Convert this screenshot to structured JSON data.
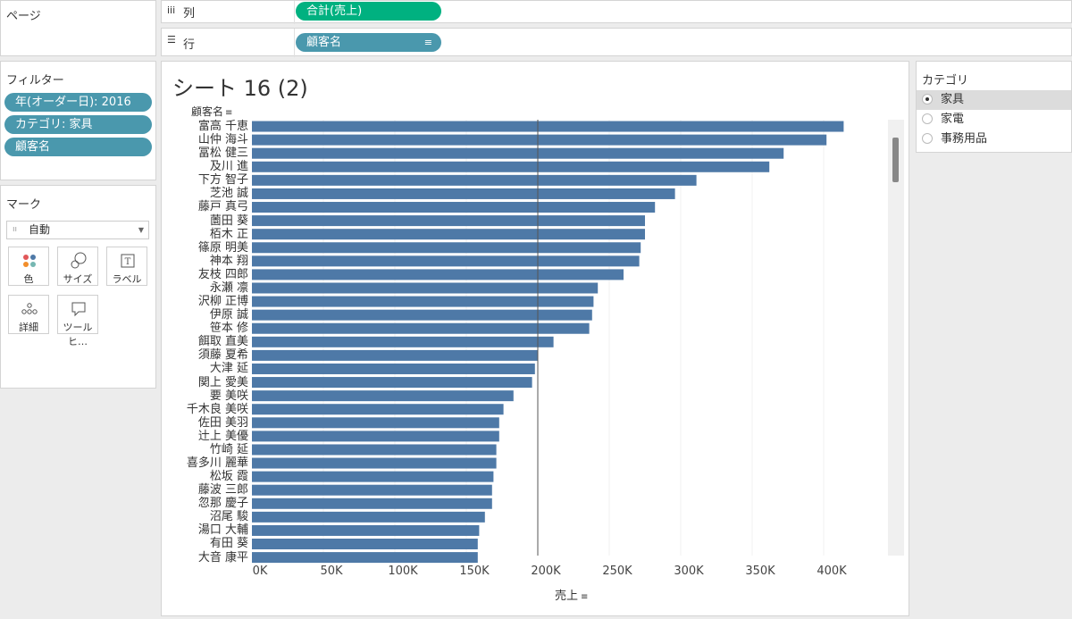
{
  "shelves": {
    "pages_label": "ページ",
    "columns_label": "列",
    "columns_icon": "iii",
    "columns_pill": "合計(売上)",
    "rows_label": "行",
    "rows_icon": "☰",
    "rows_pill": "顧客名"
  },
  "filters": {
    "title": "フィルター",
    "items": [
      "年(オーダー日): 2016",
      "カテゴリ: 家具",
      "顧客名"
    ]
  },
  "marks": {
    "title": "マーク",
    "type_dropdown": "自動",
    "buttons": [
      "色",
      "サイズ",
      "ラベル",
      "詳細",
      "ツールヒ…"
    ]
  },
  "sheet": {
    "title": "シート 16 (2)",
    "row_header": "顧客名",
    "x_axis_title": "売上"
  },
  "legend": {
    "title": "カテゴリ",
    "options": [
      "家具",
      "家電",
      "事務用品"
    ],
    "selected": "家具"
  },
  "colors": {
    "bar": "#4e79a7",
    "pill_green": "#00b180",
    "pill_teal": "#4a98ad",
    "reference_line": "#555555"
  },
  "chart_data": {
    "type": "bar",
    "orientation": "horizontal",
    "categories": [
      "富高 千恵",
      "山仲 海斗",
      "冨松 健三",
      "及川 進",
      "下方 智子",
      "芝池 誠",
      "藤戸 真弓",
      "薗田 葵",
      "栢木 正",
      "篠原 明美",
      "神本 翔",
      "友枝 四郎",
      "永瀬 凛",
      "沢柳 正博",
      "伊原 誠",
      "笹本 修",
      "餌取 直美",
      "須藤 夏希",
      "大津 延",
      "関上 愛美",
      "要 美咲",
      "千木良 美咲",
      "佐田 美羽",
      "辻上 美優",
      "竹崎 延",
      "喜多川 麗華",
      "松坂 霞",
      "藤波 三郎",
      "忽那 慶子",
      "沼尾 駿",
      "湯口 大輔",
      "有田 葵",
      "大音 康平"
    ],
    "values": [
      414000,
      402000,
      372000,
      362000,
      311000,
      296000,
      282000,
      275000,
      275000,
      272000,
      271000,
      260000,
      242000,
      239000,
      238000,
      236000,
      211000,
      200000,
      198000,
      196000,
      183000,
      176000,
      173000,
      173000,
      171000,
      171000,
      169000,
      168000,
      168000,
      163000,
      159000,
      158000,
      158000
    ],
    "x_ticks": [
      "0K",
      "50K",
      "100K",
      "150K",
      "200K",
      "250K",
      "300K",
      "350K",
      "400K"
    ],
    "xlim": [
      0,
      440000
    ],
    "reference_line": 200000,
    "xlabel": "売上",
    "ylabel": "顧客名",
    "grid": true
  }
}
